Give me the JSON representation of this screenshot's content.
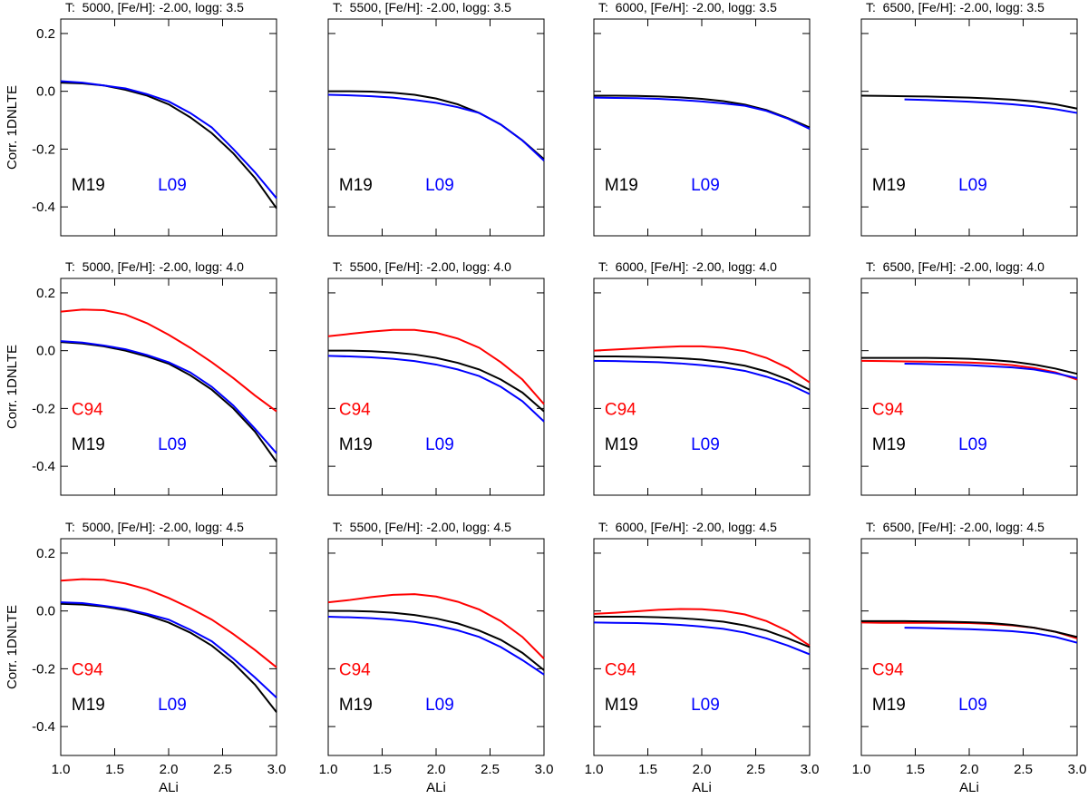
{
  "chart_data": [
    {
      "type": "line",
      "title": "T:  5000, [Fe/H]: -2.00, logg: 3.5",
      "ylabel": "Corr. 1DNLTE",
      "x": [
        1.0,
        1.2,
        1.4,
        1.6,
        1.8,
        2.0,
        2.2,
        2.4,
        2.6,
        2.8,
        3.0
      ],
      "series": [
        {
          "name": "M19",
          "color": "#000000",
          "values": [
            0.03,
            0.027,
            0.02,
            0.005,
            -0.015,
            -0.045,
            -0.09,
            -0.145,
            -0.215,
            -0.3,
            -0.405
          ]
        },
        {
          "name": "L09",
          "color": "#0000ff",
          "values": [
            0.035,
            0.03,
            0.02,
            0.01,
            -0.01,
            -0.035,
            -0.075,
            -0.125,
            -0.2,
            -0.28,
            -0.37
          ]
        }
      ],
      "xlim": [
        1,
        3
      ],
      "xticks": [
        {
          "value": 1,
          "label": "1.0"
        },
        1.5,
        {
          "value": 2,
          "label": "2.0"
        },
        2.5,
        {
          "value": 3,
          "label": "3.0"
        }
      ],
      "ylim": [
        -0.5,
        0.25
      ],
      "yticks": [
        -0.4,
        -0.2,
        {
          "value": 0,
          "label": "0.0"
        },
        0.2
      ]
    },
    {
      "type": "line",
      "title": "T:  5500, [Fe/H]: -2.00, logg: 3.5",
      "x": [
        1.0,
        1.2,
        1.4,
        1.6,
        1.8,
        2.0,
        2.2,
        2.4,
        2.6,
        2.8,
        3.0
      ],
      "series": [
        {
          "name": "M19",
          "color": "#000000",
          "values": [
            0.0,
            0.0,
            -0.001,
            -0.005,
            -0.012,
            -0.025,
            -0.045,
            -0.075,
            -0.115,
            -0.17,
            -0.235
          ]
        },
        {
          "name": "L09",
          "color": "#0000ff",
          "values": [
            -0.012,
            -0.014,
            -0.017,
            -0.022,
            -0.03,
            -0.04,
            -0.055,
            -0.075,
            -0.115,
            -0.17,
            -0.24
          ]
        }
      ],
      "xlim": [
        1,
        3
      ],
      "xticks": [
        {
          "value": 1,
          "label": "1.0"
        },
        1.5,
        {
          "value": 2,
          "label": "2.0"
        },
        2.5,
        {
          "value": 3,
          "label": "3.0"
        }
      ],
      "ylim": [
        -0.5,
        0.25
      ],
      "yticks": [
        -0.4,
        -0.2,
        {
          "value": 0,
          "label": "0.0"
        },
        0.2
      ]
    },
    {
      "type": "line",
      "title": "T:  6000, [Fe/H]: -2.00, logg: 3.5",
      "x": [
        1.0,
        1.2,
        1.4,
        1.6,
        1.8,
        2.0,
        2.2,
        2.4,
        2.6,
        2.8,
        3.0
      ],
      "series": [
        {
          "name": "M19",
          "color": "#000000",
          "values": [
            -0.015,
            -0.015,
            -0.016,
            -0.018,
            -0.021,
            -0.026,
            -0.034,
            -0.046,
            -0.065,
            -0.093,
            -0.125
          ]
        },
        {
          "name": "L09",
          "color": "#0000ff",
          "values": [
            -0.022,
            -0.023,
            -0.024,
            -0.026,
            -0.03,
            -0.035,
            -0.042,
            -0.05,
            -0.068,
            -0.095,
            -0.13
          ]
        }
      ],
      "xlim": [
        1,
        3
      ],
      "xticks": [
        {
          "value": 1,
          "label": "1.0"
        },
        1.5,
        {
          "value": 2,
          "label": "2.0"
        },
        2.5,
        {
          "value": 3,
          "label": "3.0"
        }
      ],
      "ylim": [
        -0.5,
        0.25
      ],
      "yticks": [
        -0.4,
        -0.2,
        {
          "value": 0,
          "label": "0.0"
        },
        0.2
      ]
    },
    {
      "type": "line",
      "title": "T:  6500, [Fe/H]: -2.00, logg: 3.5",
      "x": [
        1.0,
        1.2,
        1.4,
        1.6,
        1.8,
        2.0,
        2.2,
        2.4,
        2.6,
        2.8,
        3.0
      ],
      "series": [
        {
          "name": "M19",
          "color": "#000000",
          "values": [
            -0.015,
            -0.016,
            -0.017,
            -0.018,
            -0.02,
            -0.022,
            -0.025,
            -0.029,
            -0.035,
            -0.045,
            -0.06
          ]
        },
        {
          "name": "L09",
          "color": "#0000ff",
          "values": [
            null,
            null,
            -0.028,
            -0.03,
            -0.033,
            -0.036,
            -0.04,
            -0.045,
            -0.052,
            -0.062,
            -0.075
          ]
        }
      ],
      "xlim": [
        1,
        3
      ],
      "xticks": [
        {
          "value": 1,
          "label": "1.0"
        },
        1.5,
        {
          "value": 2,
          "label": "2.0"
        },
        2.5,
        {
          "value": 3,
          "label": "3.0"
        }
      ],
      "ylim": [
        -0.5,
        0.25
      ],
      "yticks": [
        -0.4,
        -0.2,
        {
          "value": 0,
          "label": "0.0"
        },
        0.2
      ]
    },
    {
      "type": "line",
      "title": "T:  5000, [Fe/H]: -2.00, logg: 4.0",
      "ylabel": "Corr. 1DNLTE",
      "x": [
        1.0,
        1.2,
        1.4,
        1.6,
        1.8,
        2.0,
        2.2,
        2.4,
        2.6,
        2.8,
        3.0
      ],
      "series": [
        {
          "name": "C94",
          "color": "#ff0000",
          "values": [
            0.135,
            0.142,
            0.14,
            0.125,
            0.095,
            0.055,
            0.01,
            -0.04,
            -0.095,
            -0.155,
            -0.21
          ]
        },
        {
          "name": "M19",
          "color": "#000000",
          "values": [
            0.03,
            0.025,
            0.015,
            0.0,
            -0.02,
            -0.045,
            -0.085,
            -0.135,
            -0.2,
            -0.28,
            -0.385
          ]
        },
        {
          "name": "L09",
          "color": "#0000ff",
          "values": [
            0.033,
            0.028,
            0.018,
            0.005,
            -0.015,
            -0.04,
            -0.075,
            -0.125,
            -0.19,
            -0.27,
            -0.355
          ]
        }
      ],
      "xlim": [
        1,
        3
      ],
      "xticks": [
        {
          "value": 1,
          "label": "1.0"
        },
        1.5,
        {
          "value": 2,
          "label": "2.0"
        },
        2.5,
        {
          "value": 3,
          "label": "3.0"
        }
      ],
      "ylim": [
        -0.5,
        0.25
      ],
      "yticks": [
        -0.4,
        -0.2,
        {
          "value": 0,
          "label": "0.0"
        },
        0.2
      ]
    },
    {
      "type": "line",
      "title": "T:  5500, [Fe/H]: -2.00, logg: 4.0",
      "x": [
        1.0,
        1.2,
        1.4,
        1.6,
        1.8,
        2.0,
        2.2,
        2.4,
        2.6,
        2.8,
        3.0
      ],
      "series": [
        {
          "name": "C94",
          "color": "#ff0000",
          "values": [
            0.05,
            0.058,
            0.066,
            0.072,
            0.072,
            0.062,
            0.042,
            0.01,
            -0.04,
            -0.1,
            -0.185
          ]
        },
        {
          "name": "M19",
          "color": "#000000",
          "values": [
            0.0,
            0.0,
            -0.002,
            -0.006,
            -0.013,
            -0.025,
            -0.042,
            -0.065,
            -0.1,
            -0.145,
            -0.21
          ]
        },
        {
          "name": "L09",
          "color": "#0000ff",
          "values": [
            -0.018,
            -0.02,
            -0.023,
            -0.028,
            -0.036,
            -0.048,
            -0.065,
            -0.088,
            -0.125,
            -0.175,
            -0.245
          ]
        }
      ],
      "xlim": [
        1,
        3
      ],
      "xticks": [
        {
          "value": 1,
          "label": "1.0"
        },
        1.5,
        {
          "value": 2,
          "label": "2.0"
        },
        2.5,
        {
          "value": 3,
          "label": "3.0"
        }
      ],
      "ylim": [
        -0.5,
        0.25
      ],
      "yticks": [
        -0.4,
        -0.2,
        {
          "value": 0,
          "label": "0.0"
        },
        0.2
      ]
    },
    {
      "type": "line",
      "title": "T:  6000, [Fe/H]: -2.00, logg: 4.0",
      "x": [
        1.0,
        1.2,
        1.4,
        1.6,
        1.8,
        2.0,
        2.2,
        2.4,
        2.6,
        2.8,
        3.0
      ],
      "series": [
        {
          "name": "C94",
          "color": "#ff0000",
          "values": [
            0.0,
            0.004,
            0.008,
            0.012,
            0.015,
            0.015,
            0.01,
            -0.002,
            -0.025,
            -0.06,
            -0.11
          ]
        },
        {
          "name": "M19",
          "color": "#000000",
          "values": [
            -0.02,
            -0.02,
            -0.021,
            -0.023,
            -0.026,
            -0.031,
            -0.04,
            -0.052,
            -0.072,
            -0.1,
            -0.135
          ]
        },
        {
          "name": "L09",
          "color": "#0000ff",
          "values": [
            -0.035,
            -0.036,
            -0.038,
            -0.04,
            -0.044,
            -0.05,
            -0.058,
            -0.07,
            -0.09,
            -0.115,
            -0.15
          ]
        }
      ],
      "xlim": [
        1,
        3
      ],
      "xticks": [
        {
          "value": 1,
          "label": "1.0"
        },
        1.5,
        {
          "value": 2,
          "label": "2.0"
        },
        2.5,
        {
          "value": 3,
          "label": "3.0"
        }
      ],
      "ylim": [
        -0.5,
        0.25
      ],
      "yticks": [
        -0.4,
        -0.2,
        {
          "value": 0,
          "label": "0.0"
        },
        0.2
      ]
    },
    {
      "type": "line",
      "title": "T:  6500, [Fe/H]: -2.00, logg: 4.0",
      "x": [
        1.0,
        1.2,
        1.4,
        1.6,
        1.8,
        2.0,
        2.2,
        2.4,
        2.6,
        2.8,
        3.0
      ],
      "series": [
        {
          "name": "C94",
          "color": "#ff0000",
          "values": [
            -0.035,
            -0.036,
            -0.037,
            -0.038,
            -0.039,
            -0.041,
            -0.044,
            -0.05,
            -0.06,
            -0.075,
            -0.1
          ]
        },
        {
          "name": "M19",
          "color": "#000000",
          "values": [
            -0.025,
            -0.025,
            -0.025,
            -0.025,
            -0.026,
            -0.028,
            -0.032,
            -0.038,
            -0.048,
            -0.062,
            -0.08
          ]
        },
        {
          "name": "L09",
          "color": "#0000ff",
          "values": [
            null,
            null,
            -0.045,
            -0.046,
            -0.048,
            -0.05,
            -0.054,
            -0.058,
            -0.065,
            -0.078,
            -0.095
          ]
        }
      ],
      "xlim": [
        1,
        3
      ],
      "xticks": [
        {
          "value": 1,
          "label": "1.0"
        },
        1.5,
        {
          "value": 2,
          "label": "2.0"
        },
        2.5,
        {
          "value": 3,
          "label": "3.0"
        }
      ],
      "ylim": [
        -0.5,
        0.25
      ],
      "yticks": [
        -0.4,
        -0.2,
        {
          "value": 0,
          "label": "0.0"
        },
        0.2
      ]
    },
    {
      "type": "line",
      "title": "T:  5000, [Fe/H]: -2.00, logg: 4.5",
      "ylabel": "Corr. 1DNLTE",
      "xlabel": "ALi",
      "x": [
        1.0,
        1.2,
        1.4,
        1.6,
        1.8,
        2.0,
        2.2,
        2.4,
        2.6,
        2.8,
        3.0
      ],
      "series": [
        {
          "name": "C94",
          "color": "#ff0000",
          "values": [
            0.105,
            0.11,
            0.108,
            0.095,
            0.075,
            0.045,
            0.01,
            -0.03,
            -0.08,
            -0.135,
            -0.195
          ]
        },
        {
          "name": "M19",
          "color": "#000000",
          "values": [
            0.025,
            0.022,
            0.015,
            0.003,
            -0.015,
            -0.04,
            -0.075,
            -0.12,
            -0.18,
            -0.255,
            -0.35
          ]
        },
        {
          "name": "L09",
          "color": "#0000ff",
          "values": [
            0.03,
            0.027,
            0.018,
            0.007,
            -0.01,
            -0.03,
            -0.065,
            -0.105,
            -0.165,
            -0.23,
            -0.3
          ]
        }
      ],
      "xlim": [
        1,
        3
      ],
      "xticks": [
        {
          "value": 1,
          "label": "1.0"
        },
        1.5,
        {
          "value": 2,
          "label": "2.0"
        },
        2.5,
        {
          "value": 3,
          "label": "3.0"
        }
      ],
      "ylim": [
        -0.5,
        0.25
      ],
      "yticks": [
        -0.4,
        -0.2,
        {
          "value": 0,
          "label": "0.0"
        },
        0.2
      ]
    },
    {
      "type": "line",
      "title": "T:  5500, [Fe/H]: -2.00, logg: 4.5",
      "xlabel": "ALi",
      "x": [
        1.0,
        1.2,
        1.4,
        1.6,
        1.8,
        2.0,
        2.2,
        2.4,
        2.6,
        2.8,
        3.0
      ],
      "series": [
        {
          "name": "C94",
          "color": "#ff0000",
          "values": [
            0.03,
            0.038,
            0.048,
            0.056,
            0.058,
            0.05,
            0.032,
            0.005,
            -0.035,
            -0.09,
            -0.165
          ]
        },
        {
          "name": "M19",
          "color": "#000000",
          "values": [
            0.0,
            0.0,
            -0.002,
            -0.006,
            -0.014,
            -0.026,
            -0.043,
            -0.068,
            -0.1,
            -0.145,
            -0.205
          ]
        },
        {
          "name": "L09",
          "color": "#0000ff",
          "values": [
            -0.02,
            -0.022,
            -0.025,
            -0.03,
            -0.038,
            -0.05,
            -0.067,
            -0.09,
            -0.125,
            -0.17,
            -0.22
          ]
        }
      ],
      "xlim": [
        1,
        3
      ],
      "xticks": [
        {
          "value": 1,
          "label": "1.0"
        },
        1.5,
        {
          "value": 2,
          "label": "2.0"
        },
        2.5,
        {
          "value": 3,
          "label": "3.0"
        }
      ],
      "ylim": [
        -0.5,
        0.25
      ],
      "yticks": [
        -0.4,
        -0.2,
        {
          "value": 0,
          "label": "0.0"
        },
        0.2
      ]
    },
    {
      "type": "line",
      "title": "T:  6000, [Fe/H]: -2.00, logg: 4.5",
      "xlabel": "ALi",
      "x": [
        1.0,
        1.2,
        1.4,
        1.6,
        1.8,
        2.0,
        2.2,
        2.4,
        2.6,
        2.8,
        3.0
      ],
      "series": [
        {
          "name": "C94",
          "color": "#ff0000",
          "values": [
            -0.01,
            -0.006,
            -0.001,
            0.004,
            0.007,
            0.006,
            0.0,
            -0.012,
            -0.035,
            -0.07,
            -0.12
          ]
        },
        {
          "name": "M19",
          "color": "#000000",
          "values": [
            -0.02,
            -0.02,
            -0.02,
            -0.022,
            -0.025,
            -0.03,
            -0.037,
            -0.05,
            -0.068,
            -0.095,
            -0.125
          ]
        },
        {
          "name": "L09",
          "color": "#0000ff",
          "values": [
            -0.04,
            -0.041,
            -0.042,
            -0.044,
            -0.048,
            -0.054,
            -0.062,
            -0.075,
            -0.095,
            -0.12,
            -0.15
          ]
        }
      ],
      "xlim": [
        1,
        3
      ],
      "xticks": [
        {
          "value": 1,
          "label": "1.0"
        },
        1.5,
        {
          "value": 2,
          "label": "2.0"
        },
        2.5,
        {
          "value": 3,
          "label": "3.0"
        }
      ],
      "ylim": [
        -0.5,
        0.25
      ],
      "yticks": [
        -0.4,
        -0.2,
        {
          "value": 0,
          "label": "0.0"
        },
        0.2
      ]
    },
    {
      "type": "line",
      "title": "T:  6500, [Fe/H]: -2.00, logg: 4.5",
      "xlabel": "ALi",
      "x": [
        1.0,
        1.2,
        1.4,
        1.6,
        1.8,
        2.0,
        2.2,
        2.4,
        2.6,
        2.8,
        3.0
      ],
      "series": [
        {
          "name": "C94",
          "color": "#ff0000",
          "values": [
            -0.04,
            -0.041,
            -0.041,
            -0.041,
            -0.041,
            -0.042,
            -0.045,
            -0.05,
            -0.058,
            -0.072,
            -0.095
          ]
        },
        {
          "name": "M19",
          "color": "#000000",
          "values": [
            -0.035,
            -0.035,
            -0.035,
            -0.036,
            -0.037,
            -0.039,
            -0.042,
            -0.048,
            -0.058,
            -0.072,
            -0.09
          ]
        },
        {
          "name": "L09",
          "color": "#0000ff",
          "values": [
            null,
            null,
            -0.058,
            -0.059,
            -0.061,
            -0.063,
            -0.066,
            -0.07,
            -0.077,
            -0.09,
            -0.11
          ]
        }
      ],
      "xlim": [
        1,
        3
      ],
      "xticks": [
        {
          "value": 1,
          "label": "1.0"
        },
        1.5,
        {
          "value": 2,
          "label": "2.0"
        },
        2.5,
        {
          "value": 3,
          "label": "3.0"
        }
      ],
      "ylim": [
        -0.5,
        0.25
      ],
      "yticks": [
        -0.4,
        -0.2,
        {
          "value": 0,
          "label": "0.0"
        },
        0.2
      ]
    }
  ]
}
